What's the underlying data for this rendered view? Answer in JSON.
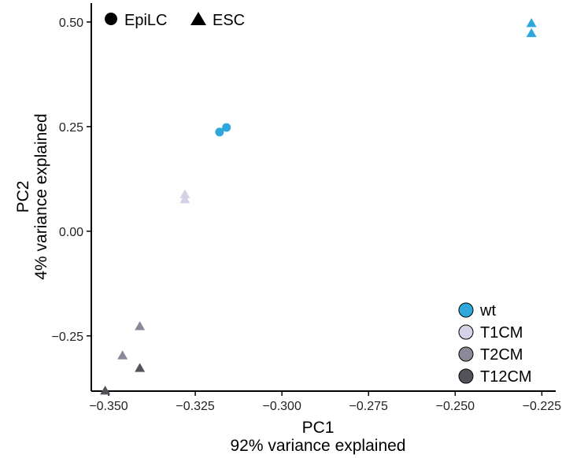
{
  "chart_data": {
    "type": "scatter",
    "xlabel": "PC1",
    "xlabel_sub": "92% variance explained",
    "ylabel": "PC2",
    "ylabel_sub": "4% variance explained",
    "xlim": [
      -0.355,
      -0.221
    ],
    "ylim": [
      -0.382,
      0.545
    ],
    "x_ticks": [
      -0.35,
      -0.325,
      -0.3,
      -0.275,
      -0.25,
      -0.225
    ],
    "x_tick_labels": [
      "−0.350",
      "−0.325",
      "−0.300",
      "−0.275",
      "−0.250",
      "−0.225"
    ],
    "y_ticks": [
      0.5,
      0.25,
      0.0,
      -0.25
    ],
    "y_tick_labels": [
      "0.50",
      "0.25",
      "0.00",
      "−0.25"
    ],
    "grid": false,
    "shape_legend": {
      "placement": "top-left",
      "items": [
        {
          "label": "EpiLC",
          "shape": "circle"
        },
        {
          "label": "ESC",
          "shape": "triangle"
        }
      ]
    },
    "color_legend": {
      "placement": "bottom-right",
      "items": [
        {
          "label": "wt",
          "color": "#2ea8dc"
        },
        {
          "label": "T1CM",
          "color": "#d6d2e6"
        },
        {
          "label": "T2CM",
          "color": "#8c8799"
        },
        {
          "label": "T12CM",
          "color": "#555359"
        }
      ]
    },
    "series": [
      {
        "group": "wt",
        "cell": "ESC",
        "color": "#2ea8dc",
        "points": [
          [
            -0.228,
            0.497
          ],
          [
            -0.228,
            0.473
          ]
        ]
      },
      {
        "group": "wt",
        "cell": "EpiLC",
        "color": "#2ea8dc",
        "points": [
          [
            -0.318,
            0.237
          ],
          [
            -0.316,
            0.248
          ]
        ]
      },
      {
        "group": "T1CM",
        "cell": "ESC",
        "color": "#d6d2e6",
        "points": [
          [
            -0.328,
            0.088
          ],
          [
            -0.328,
            0.076
          ]
        ]
      },
      {
        "group": "T2CM",
        "cell": "ESC",
        "color": "#8c8799",
        "points": [
          [
            -0.341,
            -0.227
          ],
          [
            -0.346,
            -0.297
          ]
        ]
      },
      {
        "group": "T12CM",
        "cell": "ESC",
        "color": "#555359",
        "points": [
          [
            -0.341,
            -0.327
          ],
          [
            -0.351,
            -0.381
          ]
        ]
      }
    ]
  }
}
